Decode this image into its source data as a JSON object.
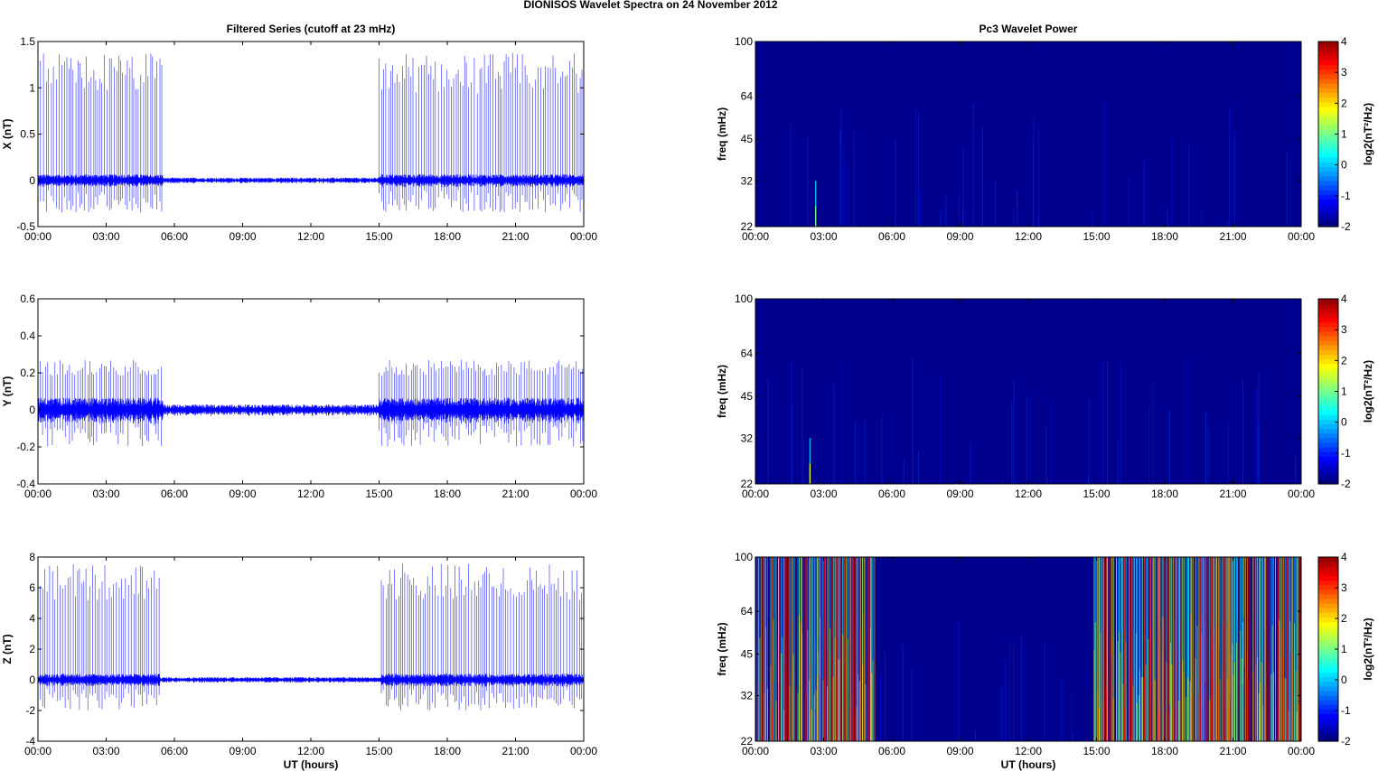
{
  "figure": {
    "title": "DIONISOS Wavelet Spectra on 24 November  2012"
  },
  "colors": {
    "trace": "#0000ff",
    "background_power": "#00008f"
  },
  "colormap": "jet",
  "chart_data": [
    {
      "type": "line",
      "title": "Filtered Series (cutoff at 23 mHz)",
      "xlabel": "",
      "ylabel": "X (nT)",
      "xticks": [
        "00:00",
        "03:00",
        "06:00",
        "09:00",
        "12:00",
        "15:00",
        "18:00",
        "21:00",
        "00:00"
      ],
      "xlim": [
        0,
        24
      ],
      "ylim": [
        -0.5,
        1.5
      ],
      "yticks": [
        -0.5,
        0,
        0.5,
        1,
        1.5
      ],
      "ytick_labels": [
        "-0.5",
        "0",
        "0.5",
        "1",
        "1.5"
      ],
      "series": [
        {
          "values_summary": {
            "baseline_amplitude": 0.05,
            "spike_intervals": [
              [
                0.0,
                5.5
              ],
              [
                15.0,
                24.0
              ]
            ],
            "spike_max": 1.38,
            "spike_min": -0.35
          }
        }
      ]
    },
    {
      "type": "heatmap",
      "title": "Pc3 Wavelet Power",
      "xlabel": "",
      "ylabel": "freq (mHz)",
      "xticks": [
        "00:00",
        "03:00",
        "06:00",
        "09:00",
        "12:00",
        "15:00",
        "18:00",
        "21:00",
        "00:00"
      ],
      "xlim": [
        0,
        24
      ],
      "yscale": "log",
      "ylim": [
        22,
        100
      ],
      "yticks": [
        22,
        32,
        45,
        64,
        100
      ],
      "ytick_labels": [
        "22",
        "32",
        "45",
        "64",
        "100"
      ],
      "colorbar": {
        "label": "log2(nT²/Hz)",
        "ticks": [
          "4",
          "3",
          "2",
          "1",
          "0",
          "-1",
          "-2"
        ],
        "range": [
          -2,
          4
        ]
      },
      "activity_intervals": [
        [
          2.6,
          2.7,
          0.5
        ]
      ]
    },
    {
      "type": "line",
      "title": "",
      "xlabel": "",
      "ylabel": "Y (nT)",
      "xticks": [
        "00:00",
        "03:00",
        "06:00",
        "09:00",
        "12:00",
        "15:00",
        "18:00",
        "21:00",
        "00:00"
      ],
      "xlim": [
        0,
        24
      ],
      "ylim": [
        -0.4,
        0.6
      ],
      "yticks": [
        -0.4,
        -0.2,
        0,
        0.2,
        0.4,
        0.6
      ],
      "ytick_labels": [
        "-0.4",
        "-0.2",
        "0",
        "0.2",
        "0.4",
        "0.6"
      ],
      "series": [
        {
          "values_summary": {
            "baseline_amplitude": 0.05,
            "spike_intervals": [
              [
                0.0,
                5.5
              ],
              [
                15.0,
                24.0
              ]
            ],
            "spike_max": 0.27,
            "spike_min": -0.2
          }
        }
      ]
    },
    {
      "type": "heatmap",
      "title": "",
      "xlabel": "",
      "ylabel": "freq (mHz)",
      "xticks": [
        "00:00",
        "03:00",
        "06:00",
        "09:00",
        "12:00",
        "15:00",
        "18:00",
        "21:00",
        "00:00"
      ],
      "xlim": [
        0,
        24
      ],
      "yscale": "log",
      "ylim": [
        22,
        100
      ],
      "yticks": [
        22,
        32,
        45,
        64,
        100
      ],
      "ytick_labels": [
        "22",
        "32",
        "45",
        "64",
        "100"
      ],
      "colorbar": {
        "label": "log2(nT²/Hz)",
        "ticks": [
          "4",
          "3",
          "2",
          "1",
          "0",
          "-1",
          "-2"
        ],
        "range": [
          -2,
          4
        ]
      },
      "activity_intervals": [
        [
          2.3,
          2.5,
          0.6
        ]
      ]
    },
    {
      "type": "line",
      "title": "",
      "xlabel": "UT (hours)",
      "ylabel": "Z (nT)",
      "xticks": [
        "00:00",
        "03:00",
        "06:00",
        "09:00",
        "12:00",
        "15:00",
        "18:00",
        "21:00",
        "00:00"
      ],
      "xlim": [
        0,
        24
      ],
      "ylim": [
        -4,
        8
      ],
      "yticks": [
        -4,
        -2,
        0,
        2,
        4,
        6,
        8
      ],
      "ytick_labels": [
        "-4",
        "-2",
        "0",
        "2",
        "4",
        "6",
        "8"
      ],
      "series": [
        {
          "values_summary": {
            "baseline_amplitude": 0.3,
            "spike_intervals": [
              [
                0.0,
                5.4
              ],
              [
                15.1,
                24.0
              ]
            ],
            "spike_max": 7.6,
            "spike_min": -2.0
          }
        }
      ]
    },
    {
      "type": "heatmap",
      "title": "",
      "xlabel": "UT (hours)",
      "ylabel": "freq (mHz)",
      "xticks": [
        "00:00",
        "03:00",
        "06:00",
        "09:00",
        "12:00",
        "15:00",
        "18:00",
        "21:00",
        "00:00"
      ],
      "xlim": [
        0,
        24
      ],
      "yscale": "log",
      "ylim": [
        22,
        100
      ],
      "yticks": [
        22,
        32,
        45,
        64,
        100
      ],
      "ytick_labels": [
        "22",
        "32",
        "45",
        "64",
        "100"
      ],
      "colorbar": {
        "label": "log2(nT²/Hz)",
        "ticks": [
          "4",
          "3",
          "2",
          "1",
          "0",
          "-1",
          "-2"
        ],
        "range": [
          -2,
          4
        ]
      },
      "activity_intervals": [
        [
          0.0,
          5.3,
          1.0
        ],
        [
          14.9,
          24.0,
          1.0
        ]
      ]
    }
  ]
}
